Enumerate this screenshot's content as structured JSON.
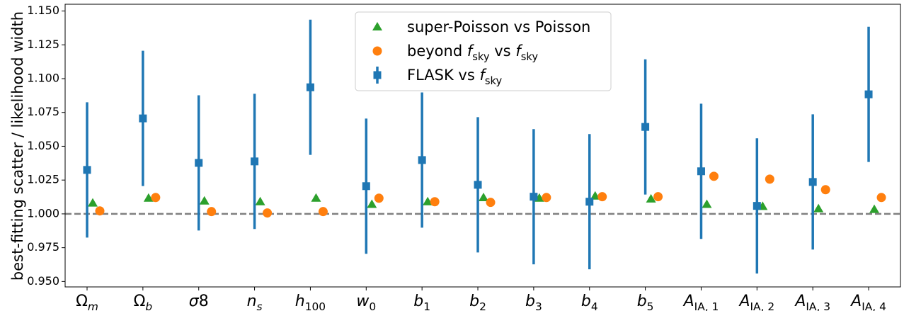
{
  "chart_data": {
    "type": "errorbar",
    "ylabel": "best-fitting scatter / likelihood width",
    "categories": [
      [
        {
          "text": "Ω"
        },
        {
          "text": "m",
          "style": "sub-italic"
        }
      ],
      [
        {
          "text": "Ω"
        },
        {
          "text": "b",
          "style": "sub-italic"
        }
      ],
      [
        {
          "text": "σ",
          "style": "italic"
        },
        {
          "text": "8"
        }
      ],
      [
        {
          "text": "n",
          "style": "italic"
        },
        {
          "text": "s",
          "style": "sub-italic"
        }
      ],
      [
        {
          "text": "h",
          "style": "italic"
        },
        {
          "text": "100",
          "style": "sub"
        }
      ],
      [
        {
          "text": "w",
          "style": "italic"
        },
        {
          "text": "0",
          "style": "sub"
        }
      ],
      [
        {
          "text": "b",
          "style": "italic"
        },
        {
          "text": "1",
          "style": "sub"
        }
      ],
      [
        {
          "text": "b",
          "style": "italic"
        },
        {
          "text": "2",
          "style": "sub"
        }
      ],
      [
        {
          "text": "b",
          "style": "italic"
        },
        {
          "text": "3",
          "style": "sub"
        }
      ],
      [
        {
          "text": "b",
          "style": "italic"
        },
        {
          "text": "4",
          "style": "sub"
        }
      ],
      [
        {
          "text": "b",
          "style": "italic"
        },
        {
          "text": "5",
          "style": "sub"
        }
      ],
      [
        {
          "text": "A",
          "style": "italic"
        },
        {
          "text": "IA, 1",
          "style": "sub"
        }
      ],
      [
        {
          "text": "A",
          "style": "italic"
        },
        {
          "text": "IA, 2",
          "style": "sub"
        }
      ],
      [
        {
          "text": "A",
          "style": "italic"
        },
        {
          "text": "IA, 3",
          "style": "sub"
        }
      ],
      [
        {
          "text": "A",
          "style": "italic"
        },
        {
          "text": "IA, 4",
          "style": "sub"
        }
      ]
    ],
    "series": [
      {
        "name": [
          {
            "text": "super-Poisson vs Poisson"
          }
        ],
        "color": "#2ca02c",
        "marker": "triangle",
        "values": [
          1.008,
          1.0116,
          1.0095,
          1.009,
          1.0116,
          1.007,
          1.009,
          1.012,
          1.0116,
          1.0132,
          1.011,
          1.007,
          1.0055,
          1.0038,
          1.0033
        ]
      },
      {
        "name": [
          {
            "text": "beyond "
          },
          {
            "text": "f",
            "style": "italic"
          },
          {
            "text": "sky",
            "style": "sub"
          },
          {
            "text": " vs "
          },
          {
            "text": "f",
            "style": "italic"
          },
          {
            "text": "sky",
            "style": "sub"
          }
        ],
        "color": "#ff7f0e",
        "marker": "circle",
        "values": [
          1.0022,
          1.0121,
          1.0017,
          1.0007,
          1.0017,
          1.0116,
          1.009,
          1.0085,
          1.0121,
          1.0127,
          1.0127,
          1.0278,
          1.0257,
          1.0179,
          1.0121
        ]
      },
      {
        "name": [
          {
            "text": "FLASK vs "
          },
          {
            "text": "f",
            "style": "italic"
          },
          {
            "text": "sky",
            "style": "sub"
          }
        ],
        "color": "#1f77b4",
        "marker": "square",
        "values": [
          1.0325,
          1.0706,
          1.0377,
          1.0388,
          1.0936,
          1.0205,
          1.0398,
          1.0215,
          1.0127,
          1.009,
          1.0643,
          1.0315,
          1.0059,
          1.0236,
          1.0884
        ],
        "errors": [
          0.05,
          0.05,
          0.05,
          0.05,
          0.05,
          0.05,
          0.05,
          0.05,
          0.05,
          0.05,
          0.05,
          0.05,
          0.05,
          0.05,
          0.05
        ]
      }
    ],
    "reference_line": 1.0,
    "ylim": [
      0.946,
      1.155
    ],
    "yticks": [
      {
        "value": 0.95,
        "label": "0.950"
      },
      {
        "value": 0.975,
        "label": "0.975"
      },
      {
        "value": 1.0,
        "label": "1.000"
      },
      {
        "value": 1.025,
        "label": "1.025"
      },
      {
        "value": 1.05,
        "label": "1.050"
      },
      {
        "value": 1.075,
        "label": "1.075"
      },
      {
        "value": 1.1,
        "label": "1.100"
      },
      {
        "value": 1.125,
        "label": "1.125"
      },
      {
        "value": 1.15,
        "label": "1.150"
      }
    ],
    "legend": "upper center"
  }
}
